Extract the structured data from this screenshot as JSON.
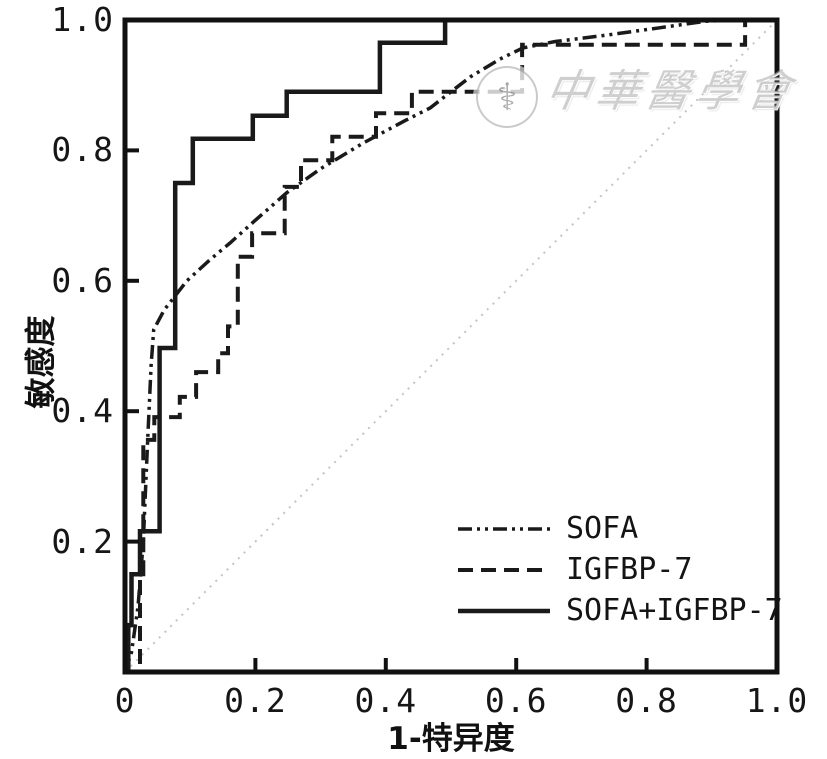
{
  "watermark": {
    "text": "中華醫學會",
    "logo_glyph": "⚕",
    "logo_name": "chinese-medical-association-seal"
  },
  "chart_data": {
    "type": "line",
    "subtype": "roc-curve",
    "xlabel": "1-特异度",
    "ylabel": "敏感度",
    "xlim": [
      0,
      1
    ],
    "ylim": [
      0,
      1
    ],
    "grid": false,
    "legend_position": "lower-right-inside",
    "frame_color": "#111111",
    "line_color": "#1a1a1a",
    "x_ticks": [
      {
        "value": 0,
        "label": "0"
      },
      {
        "value": 0.2,
        "label": "0.2"
      },
      {
        "value": 0.4,
        "label": "0.4"
      },
      {
        "value": 0.6,
        "label": "0.6"
      },
      {
        "value": 0.8,
        "label": "0.8"
      },
      {
        "value": 1.0,
        "label": "1.0"
      }
    ],
    "y_ticks": [
      {
        "value": 0.2,
        "label": "0.2"
      },
      {
        "value": 0.4,
        "label": "0.4"
      },
      {
        "value": 0.6,
        "label": "0.6"
      },
      {
        "value": 0.8,
        "label": "0.8"
      },
      {
        "value": 1.0,
        "label": "1.0"
      }
    ],
    "reference_line": {
      "name": "chance-diagonal",
      "color": "#c4c4c4",
      "points": [
        [
          0,
          0
        ],
        [
          1,
          1
        ]
      ]
    },
    "series": [
      {
        "id": "sofa",
        "name": "SOFA",
        "line_style": "dash-dot-dot",
        "points": [
          [
            0,
            0
          ],
          [
            0.01,
            0.03
          ],
          [
            0.02,
            0.1
          ],
          [
            0.028,
            0.2
          ],
          [
            0.035,
            0.36
          ],
          [
            0.04,
            0.47
          ],
          [
            0.044,
            0.525
          ],
          [
            0.06,
            0.555
          ],
          [
            0.095,
            0.6
          ],
          [
            0.13,
            0.632
          ],
          [
            0.161,
            0.658
          ],
          [
            0.2,
            0.693
          ],
          [
            0.248,
            0.735
          ],
          [
            0.3,
            0.772
          ],
          [
            0.365,
            0.811
          ],
          [
            0.43,
            0.846
          ],
          [
            0.468,
            0.865
          ],
          [
            0.5,
            0.89
          ],
          [
            0.53,
            0.913
          ],
          [
            0.575,
            0.94
          ],
          [
            0.61,
            0.957
          ],
          [
            0.66,
            0.967
          ],
          [
            0.74,
            0.977
          ],
          [
            0.82,
            0.988
          ],
          [
            0.89,
            0.998
          ],
          [
            0.93,
            1.0
          ],
          [
            1.0,
            1.0
          ]
        ]
      },
      {
        "id": "igfbp7",
        "name": "IGFBP-7",
        "line_style": "dashed",
        "points": [
          [
            0,
            0
          ],
          [
            0.023,
            0
          ],
          [
            0.023,
            0.15
          ],
          [
            0.028,
            0.15
          ],
          [
            0.028,
            0.356
          ],
          [
            0.045,
            0.356
          ],
          [
            0.045,
            0.391
          ],
          [
            0.084,
            0.391
          ],
          [
            0.084,
            0.422
          ],
          [
            0.109,
            0.422
          ],
          [
            0.109,
            0.46
          ],
          [
            0.143,
            0.46
          ],
          [
            0.143,
            0.489
          ],
          [
            0.158,
            0.489
          ],
          [
            0.158,
            0.53
          ],
          [
            0.173,
            0.53
          ],
          [
            0.173,
            0.637
          ],
          [
            0.195,
            0.637
          ],
          [
            0.195,
            0.673
          ],
          [
            0.245,
            0.673
          ],
          [
            0.245,
            0.744
          ],
          [
            0.27,
            0.744
          ],
          [
            0.27,
            0.785
          ],
          [
            0.318,
            0.785
          ],
          [
            0.318,
            0.821
          ],
          [
            0.385,
            0.821
          ],
          [
            0.385,
            0.857
          ],
          [
            0.44,
            0.857
          ],
          [
            0.44,
            0.89
          ],
          [
            0.609,
            0.89
          ],
          [
            0.609,
            0.962
          ],
          [
            0.951,
            0.962
          ],
          [
            0.951,
            1.0
          ],
          [
            1.0,
            1.0
          ]
        ]
      },
      {
        "id": "sofa-igfbp7",
        "name": "SOFA+IGFBP-7",
        "line_style": "solid",
        "points": [
          [
            0,
            0
          ],
          [
            0.005,
            0
          ],
          [
            0.005,
            0.072
          ],
          [
            0.01,
            0.072
          ],
          [
            0.01,
            0.15
          ],
          [
            0.023,
            0.15
          ],
          [
            0.023,
            0.216
          ],
          [
            0.053,
            0.216
          ],
          [
            0.053,
            0.497
          ],
          [
            0.077,
            0.497
          ],
          [
            0.077,
            0.75
          ],
          [
            0.104,
            0.75
          ],
          [
            0.104,
            0.818
          ],
          [
            0.196,
            0.818
          ],
          [
            0.196,
            0.853
          ],
          [
            0.248,
            0.853
          ],
          [
            0.248,
            0.89
          ],
          [
            0.391,
            0.89
          ],
          [
            0.391,
            0.965
          ],
          [
            0.491,
            0.965
          ],
          [
            0.491,
            1.0
          ],
          [
            1.0,
            1.0
          ]
        ]
      }
    ]
  }
}
